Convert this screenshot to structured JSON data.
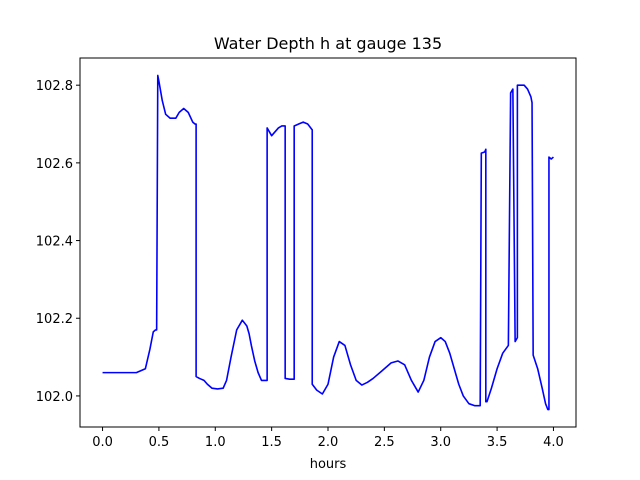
{
  "chart_data": {
    "type": "line",
    "title": "Water Depth h at gauge 135",
    "xlabel": "hours",
    "ylabel": "",
    "xlim": [
      -0.2,
      4.2
    ],
    "ylim": [
      101.92,
      102.87
    ],
    "grid": false,
    "legend": "none",
    "x_ticks": [
      0.0,
      0.5,
      1.0,
      1.5,
      2.0,
      2.5,
      3.0,
      3.5,
      4.0
    ],
    "x_tick_labels": [
      "0.0",
      "0.5",
      "1.0",
      "1.5",
      "2.0",
      "2.5",
      "3.0",
      "3.5",
      "4.0"
    ],
    "y_ticks": [
      102.0,
      102.2,
      102.4,
      102.6,
      102.8
    ],
    "y_tick_labels": [
      "102.0",
      "102.2",
      "102.4",
      "102.6",
      "102.8"
    ],
    "series": [
      {
        "color": "#0000ff",
        "x": [
          0.0,
          0.1,
          0.2,
          0.3,
          0.38,
          0.42,
          0.45,
          0.47,
          0.48,
          0.49,
          0.5,
          0.53,
          0.56,
          0.6,
          0.65,
          0.68,
          0.72,
          0.76,
          0.8,
          0.82,
          0.83,
          0.83,
          0.86,
          0.9,
          0.93,
          0.97,
          1.02,
          1.07,
          1.1,
          1.14,
          1.19,
          1.24,
          1.28,
          1.3,
          1.32,
          1.35,
          1.38,
          1.41,
          1.44,
          1.46,
          1.46,
          1.48,
          1.5,
          1.53,
          1.56,
          1.59,
          1.62,
          1.62,
          1.66,
          1.7,
          1.7,
          1.74,
          1.78,
          1.82,
          1.86,
          1.86,
          1.9,
          1.95,
          2.0,
          2.05,
          2.1,
          2.15,
          2.2,
          2.25,
          2.3,
          2.35,
          2.4,
          2.5,
          2.56,
          2.62,
          2.68,
          2.74,
          2.8,
          2.85,
          2.9,
          2.95,
          3.0,
          3.04,
          3.08,
          3.12,
          3.16,
          3.2,
          3.25,
          3.3,
          3.35,
          3.36,
          3.36,
          3.39,
          3.4,
          3.4,
          3.41,
          3.45,
          3.5,
          3.55,
          3.6,
          3.62,
          3.62,
          3.64,
          3.66,
          3.66,
          3.68,
          3.68,
          3.7,
          3.74,
          3.77,
          3.8,
          3.81,
          3.82,
          3.86,
          3.9,
          3.93,
          3.95,
          3.96,
          3.96,
          3.98,
          4.0
        ],
        "values": [
          102.06,
          102.06,
          102.06,
          102.06,
          102.07,
          102.12,
          102.165,
          102.17,
          102.17,
          102.825,
          102.81,
          102.76,
          102.725,
          102.715,
          102.715,
          102.73,
          102.74,
          102.73,
          102.705,
          102.7,
          102.7,
          102.05,
          102.045,
          102.04,
          102.03,
          102.02,
          102.018,
          102.02,
          102.04,
          102.1,
          102.17,
          102.195,
          102.18,
          102.16,
          102.13,
          102.09,
          102.06,
          102.04,
          102.04,
          102.04,
          102.69,
          102.68,
          102.67,
          102.68,
          102.69,
          102.695,
          102.695,
          102.045,
          102.043,
          102.043,
          102.695,
          102.7,
          102.705,
          102.7,
          102.685,
          102.03,
          102.015,
          102.005,
          102.03,
          102.1,
          102.14,
          102.13,
          102.08,
          102.04,
          102.028,
          102.035,
          102.045,
          102.07,
          102.085,
          102.09,
          102.08,
          102.04,
          102.01,
          102.04,
          102.1,
          102.14,
          102.15,
          102.14,
          102.11,
          102.07,
          102.03,
          102.0,
          101.98,
          101.975,
          101.975,
          102.625,
          102.625,
          102.628,
          102.635,
          101.985,
          101.985,
          102.02,
          102.07,
          102.11,
          102.13,
          102.78,
          102.78,
          102.79,
          102.14,
          102.14,
          102.15,
          102.8,
          102.8,
          102.8,
          102.79,
          102.77,
          102.755,
          102.105,
          102.07,
          102.02,
          101.98,
          101.965,
          101.965,
          102.615,
          102.61,
          102.615
        ]
      }
    ]
  }
}
